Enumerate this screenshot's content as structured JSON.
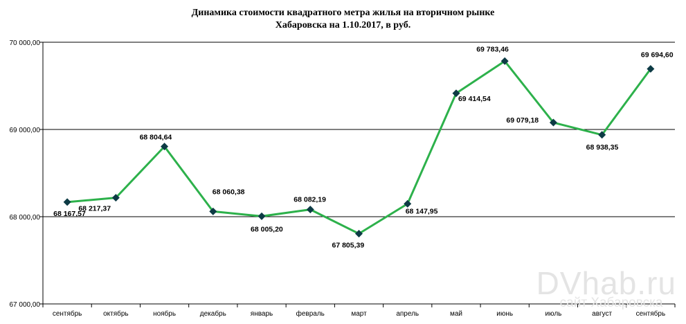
{
  "chart_data": {
    "type": "line",
    "title": [
      "Динамика стоимости квадратного метра жилья на вторичном рынке",
      "Хабаровска на 1.10.2017, в руб."
    ],
    "xlabel": "",
    "ylabel": "",
    "categories": [
      "сентябрь",
      "октябрь",
      "ноябрь",
      "декабрь",
      "январь",
      "февраль",
      "март",
      "апрель",
      "май",
      "июнь",
      "июль",
      "август",
      "сентябрь"
    ],
    "series": [
      {
        "values": [
          68167.57,
          68217.37,
          68804.64,
          68060.38,
          68005.2,
          68082.19,
          67805.39,
          68147.95,
          69414.54,
          69783.46,
          69079.18,
          68938.35,
          69694.6
        ],
        "labels": [
          "68 167,57",
          "68 217,37",
          "68 804,64",
          "68 060,38",
          "68 005,20",
          "68 082,19",
          "67 805,39",
          "68 147,95",
          "69 414,54",
          "69 783,46",
          "69 079,18",
          "68 938,35",
          "69 694,60"
        ],
        "color": "#2db14b",
        "marker_color": "#0d3b45"
      }
    ],
    "ylim": [
      67000,
      70000
    ],
    "yticks": [
      67000,
      68000,
      69000,
      70000
    ],
    "ytick_labels": [
      "67 000,00",
      "68 000,00",
      "69 000,00",
      "70 000,00"
    ],
    "grid": "horizontal",
    "legend": "none"
  },
  "watermark": {
    "main": "DVhab.ru",
    "sub": "сайт Хабаровска"
  }
}
